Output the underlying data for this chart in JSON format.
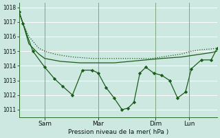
{
  "bg_color": "#cce8e0",
  "grid_color": "#b0d8d0",
  "line_color": "#1a5c1a",
  "xlabel": "Pression niveau de la mer( hPa )",
  "ylim": [
    1010.5,
    1018.3
  ],
  "yticks": [
    1011,
    1012,
    1013,
    1014,
    1015,
    1016,
    1017,
    1018
  ],
  "x_tick_labels": [
    "Sam",
    "Mar",
    "Dim",
    "Lun"
  ],
  "x_tick_positions": [
    0.13,
    0.4,
    0.69,
    0.86
  ],
  "series1_x": [
    0.0,
    0.02,
    0.05,
    0.1,
    0.13,
    0.18,
    0.22,
    0.27,
    0.32,
    0.37,
    0.42,
    0.47,
    0.52,
    0.57,
    0.62,
    0.67,
    0.72,
    0.77,
    0.82,
    0.87,
    0.92,
    0.97,
    1.0
  ],
  "series1_y": [
    1017.7,
    1016.9,
    1016.0,
    1015.2,
    1015.0,
    1014.8,
    1014.7,
    1014.6,
    1014.55,
    1014.5,
    1014.5,
    1014.5,
    1014.5,
    1014.5,
    1014.5,
    1014.5,
    1014.6,
    1014.7,
    1014.8,
    1015.0,
    1015.1,
    1015.15,
    1015.2
  ],
  "series2_x": [
    0.0,
    0.02,
    0.05,
    0.1,
    0.13,
    0.17,
    0.21,
    0.26,
    0.31,
    0.36,
    0.4,
    0.44,
    0.48,
    0.52,
    0.56,
    0.6,
    0.64,
    0.68,
    0.72,
    0.77,
    0.82,
    0.87,
    0.92,
    0.97,
    1.0
  ],
  "series2_y": [
    1017.7,
    1016.9,
    1015.5,
    1014.8,
    1014.5,
    1014.4,
    1014.3,
    1014.25,
    1014.2,
    1014.2,
    1014.2,
    1014.2,
    1014.2,
    1014.25,
    1014.3,
    1014.35,
    1014.4,
    1014.45,
    1014.5,
    1014.55,
    1014.6,
    1014.7,
    1014.8,
    1014.9,
    1015.0
  ],
  "series3_x": [
    0.0,
    0.02,
    0.07,
    0.13,
    0.18,
    0.22,
    0.27,
    0.32,
    0.37,
    0.4,
    0.44,
    0.48,
    0.52,
    0.55,
    0.58,
    0.61,
    0.64,
    0.68,
    0.72,
    0.76,
    0.8,
    0.84,
    0.87,
    0.92,
    0.97,
    1.0
  ],
  "series3_y": [
    1017.7,
    1016.9,
    1015.0,
    1013.9,
    1013.1,
    1012.6,
    1012.0,
    1013.7,
    1013.7,
    1013.5,
    1012.5,
    1011.8,
    1011.0,
    1011.1,
    1011.5,
    1013.5,
    1013.9,
    1013.5,
    1013.35,
    1013.0,
    1011.8,
    1012.2,
    1013.8,
    1014.4,
    1014.4,
    1015.2
  ]
}
